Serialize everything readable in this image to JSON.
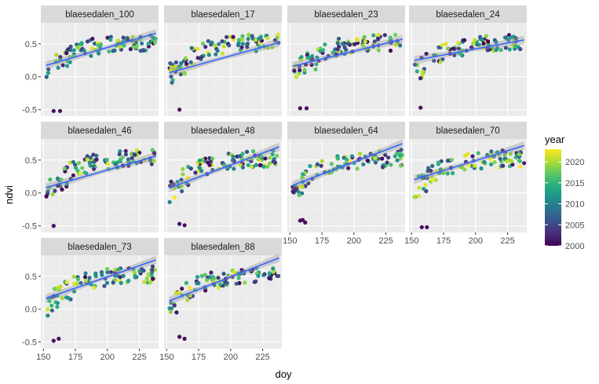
{
  "chart_data": {
    "type": "scatter",
    "facet_variable": "site",
    "xlabel": "doy",
    "ylabel": "ndvi",
    "xlim": [
      148,
      240
    ],
    "ylim": [
      -0.6,
      0.82
    ],
    "x_ticks": [
      150,
      175,
      200,
      225
    ],
    "y_ticks": [
      -0.5,
      0.0,
      0.5
    ],
    "y_tick_labels": [
      "-0.5",
      "0.0",
      "0.5"
    ],
    "grid": true,
    "trend_line": "linear fit with confidence band",
    "trend_color": "#3366FF",
    "color_scale": {
      "title": "year",
      "palette": "viridis",
      "range": [
        2000,
        2023
      ],
      "ticks": [
        2000,
        2005,
        2010,
        2015,
        2020
      ],
      "legend_position": "right"
    },
    "panels": [
      {
        "title": "blaesedalen_100",
        "fit": {
          "intercept_at_150": 0.16,
          "value_at_238": 0.66
        },
        "outliers": [
          [
            158,
            -0.52,
            2001
          ],
          [
            163,
            -0.52,
            2001
          ]
        ]
      },
      {
        "title": "blaesedalen_17",
        "fit": {
          "intercept_at_150": 0.05,
          "value_at_238": 0.52
        },
        "outliers": [
          [
            160,
            -0.5,
            2001
          ]
        ]
      },
      {
        "title": "blaesedalen_23",
        "fit": {
          "intercept_at_150": 0.15,
          "value_at_238": 0.57
        },
        "outliers": [
          [
            158,
            -0.48,
            2001
          ],
          [
            163,
            -0.48,
            2001
          ]
        ]
      },
      {
        "title": "blaesedalen_24",
        "fit": {
          "intercept_at_150": 0.24,
          "value_at_238": 0.56
        },
        "outliers": [
          [
            157,
            -0.47,
            2001
          ]
        ]
      },
      {
        "title": "blaesedalen_46",
        "fit": {
          "intercept_at_150": 0.07,
          "value_at_238": 0.56
        },
        "outliers": [
          [
            158,
            -0.5,
            2001
          ]
        ]
      },
      {
        "title": "blaesedalen_48",
        "fit": {
          "intercept_at_150": 0.06,
          "value_at_238": 0.7
        },
        "outliers": [
          [
            160,
            -0.47,
            2001
          ],
          [
            164,
            -0.49,
            2001
          ]
        ]
      },
      {
        "title": "blaesedalen_64",
        "fit": {
          "intercept_at_150": 0.1,
          "value_at_238": 0.75
        },
        "outliers": [
          [
            158,
            -0.42,
            2001
          ],
          [
            162,
            -0.45,
            2001
          ],
          [
            160,
            -0.41,
            2001
          ]
        ]
      },
      {
        "title": "blaesedalen_70",
        "fit": {
          "intercept_at_150": 0.19,
          "value_at_238": 0.72
        },
        "outliers": [
          [
            158,
            -0.52,
            2001
          ],
          [
            162,
            -0.52,
            2001
          ]
        ]
      },
      {
        "title": "blaesedalen_73",
        "fit": {
          "intercept_at_150": 0.15,
          "value_at_238": 0.75
        },
        "outliers": [
          [
            158,
            -0.48,
            2001
          ],
          [
            162,
            -0.45,
            2001
          ]
        ]
      },
      {
        "title": "blaesedalen_88",
        "fit": {
          "intercept_at_150": 0.11,
          "value_at_238": 0.78
        },
        "outliers": [
          [
            160,
            -0.42,
            2001
          ],
          [
            164,
            -0.45,
            2001
          ]
        ]
      }
    ]
  }
}
